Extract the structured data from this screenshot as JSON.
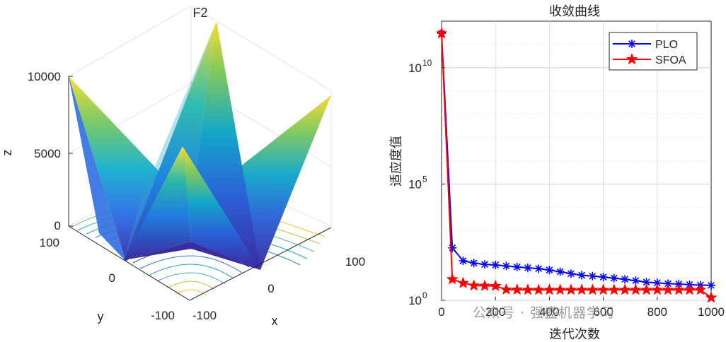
{
  "chart_data": [
    {
      "type": "surface",
      "title": "F2",
      "xlabel": "x",
      "ylabel": "y",
      "zlabel": "z",
      "x_ticks": [
        "-100",
        "0",
        "100"
      ],
      "y_ticks": [
        "-100",
        "0",
        "100"
      ],
      "z_ticks": [
        "0",
        "5000",
        "10000"
      ],
      "xlim": [
        -100,
        100
      ],
      "ylim": [
        -100,
        100
      ],
      "zlim": [
        0,
        10000
      ],
      "function": "|x| + |y| + |x|*|y|",
      "grid": true,
      "colormap": "parula",
      "contour_on_floor": true
    },
    {
      "type": "line",
      "title": "收敛曲线",
      "xlabel": "迭代次数",
      "ylabel": "适应度值",
      "yscale": "log",
      "xlim": [
        0,
        1000
      ],
      "ylim": [
        1,
        1000000000000.0
      ],
      "x_ticks": [
        "0",
        "200",
        "400",
        "600",
        "800",
        "1000"
      ],
      "y_ticks": [
        {
          "base": "10",
          "exp": "0",
          "value": 1
        },
        {
          "base": "10",
          "exp": "5",
          "value": 100000
        },
        {
          "base": "10",
          "exp": "10",
          "value": 10000000000
        }
      ],
      "legend_position": "top-right",
      "grid": true,
      "series": [
        {
          "name": "PLO",
          "color": "#0000ff",
          "marker": "asterisk",
          "x": [
            0,
            40,
            80,
            120,
            160,
            200,
            240,
            280,
            320,
            360,
            400,
            440,
            480,
            520,
            560,
            600,
            640,
            680,
            720,
            760,
            800,
            840,
            880,
            920,
            960,
            1000
          ],
          "y": [
            300000000000,
            180,
            50,
            40,
            35,
            33,
            30,
            27,
            25,
            23,
            20,
            17,
            14,
            12,
            11,
            10,
            9,
            8,
            7,
            6,
            5.6,
            5.2,
            5.0,
            4.7,
            4.5,
            4.4
          ]
        },
        {
          "name": "SFOA",
          "color": "#ff0000",
          "marker": "pentagram",
          "x": [
            0,
            40,
            80,
            120,
            160,
            200,
            240,
            280,
            320,
            360,
            400,
            440,
            480,
            520,
            560,
            600,
            640,
            680,
            720,
            760,
            800,
            840,
            880,
            920,
            960,
            1000
          ],
          "y": [
            300000000000,
            8,
            5.5,
            4.3,
            4.2,
            4.1,
            2.9,
            2.85,
            2.8,
            2.8,
            2.8,
            2.8,
            2.8,
            2.8,
            2.8,
            2.8,
            2.8,
            2.8,
            2.8,
            2.8,
            2.8,
            2.8,
            2.8,
            2.8,
            2.8,
            1.3
          ]
        }
      ]
    }
  ],
  "watermark": "公众号 · 强盛机器学习"
}
